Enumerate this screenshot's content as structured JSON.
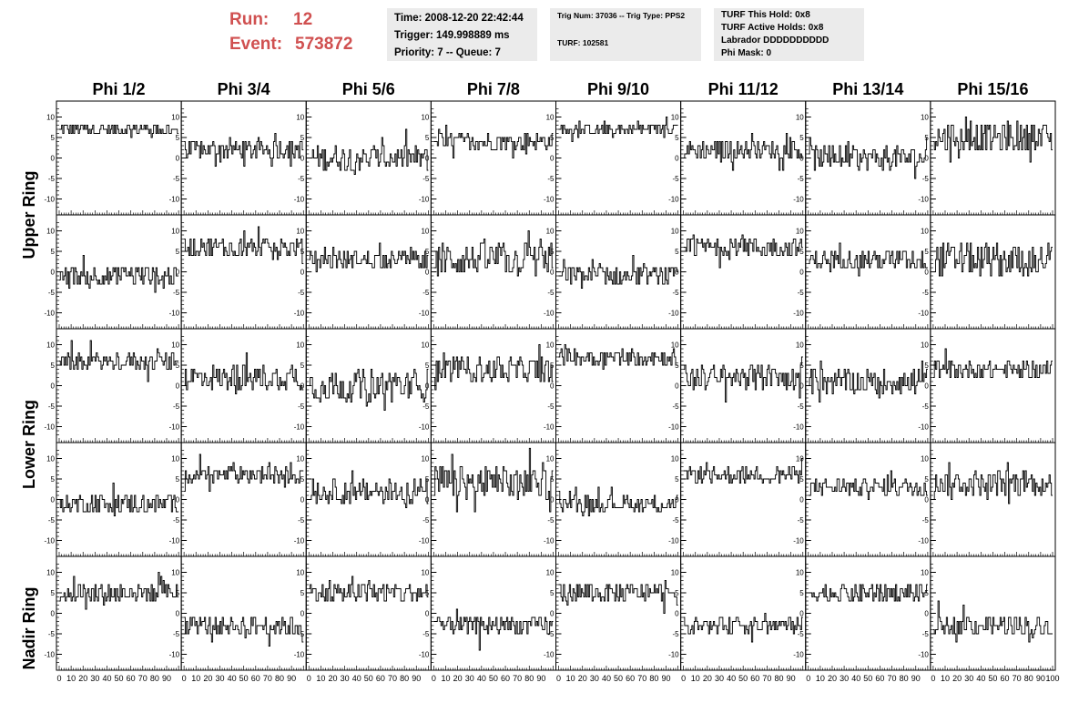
{
  "header": {
    "run_label": "Run:",
    "run_value": "12",
    "event_label": "Event:",
    "event_value": "573872"
  },
  "info_panel_1": {
    "time": "Time: 2008-12-20 22:42:44",
    "trigger": "Trigger: 149.998889 ms",
    "priority": "Priority: 7 -- Queue: 7"
  },
  "info_panel_2": {
    "trig": "Trig Num: 37036 -- Trig Type: PPS2",
    "turf": "TURF: 102581"
  },
  "info_panel_3": {
    "hold": "TURF This Hold: 0x8",
    "active": "TURF Active Holds: 0x8",
    "labrador": "Labrador DDDDDDDDDD",
    "phimask": "Phi Mask: 0"
  },
  "chart_data": {
    "type": "line",
    "columns": [
      "Phi 1/2",
      "Phi 3/4",
      "Phi 5/6",
      "Phi 7/8",
      "Phi 9/10",
      "Phi 11/12",
      "Phi 13/14",
      "Phi 15/16"
    ],
    "rows": [
      "Upper Ring",
      "Upper Ring",
      "Lower Ring",
      "Lower Ring",
      "Nadir Ring"
    ],
    "row_labels": [
      "Upper Ring",
      "Lower Ring",
      "Nadir Ring"
    ],
    "ylim": [
      -13,
      13
    ],
    "yticks": [
      -10,
      -5,
      0,
      5,
      10
    ],
    "xlim": [
      0,
      100
    ],
    "xticks": [
      0,
      10,
      20,
      30,
      40,
      50,
      60,
      70,
      80,
      90,
      100
    ],
    "n_samples": 100,
    "grid": false,
    "traces_description_baselines": [
      [
        7,
        2,
        0,
        4,
        7,
        2,
        0,
        5
      ],
      [
        -1,
        6,
        3,
        3,
        -1,
        6,
        3,
        3
      ],
      [
        6,
        2,
        0,
        4,
        7,
        2,
        1,
        4
      ],
      [
        -1,
        6,
        2,
        4,
        -1,
        6,
        3,
        4
      ],
      [
        5,
        -3,
        5,
        -3,
        5,
        -3,
        5,
        -3
      ]
    ],
    "traces_amplitudes": [
      [
        1.5,
        2.5,
        3,
        2,
        1.5,
        2.5,
        3,
        3.5
      ],
      [
        2.5,
        2.5,
        2,
        4,
        2.5,
        2.5,
        2.5,
        4
      ],
      [
        2,
        3,
        4,
        3,
        2,
        3,
        3,
        2
      ],
      [
        2.5,
        2,
        3,
        4,
        2,
        2,
        2,
        3
      ],
      [
        2.5,
        2.5,
        2.5,
        2.5,
        2.5,
        2,
        2.5,
        2.5
      ]
    ]
  }
}
